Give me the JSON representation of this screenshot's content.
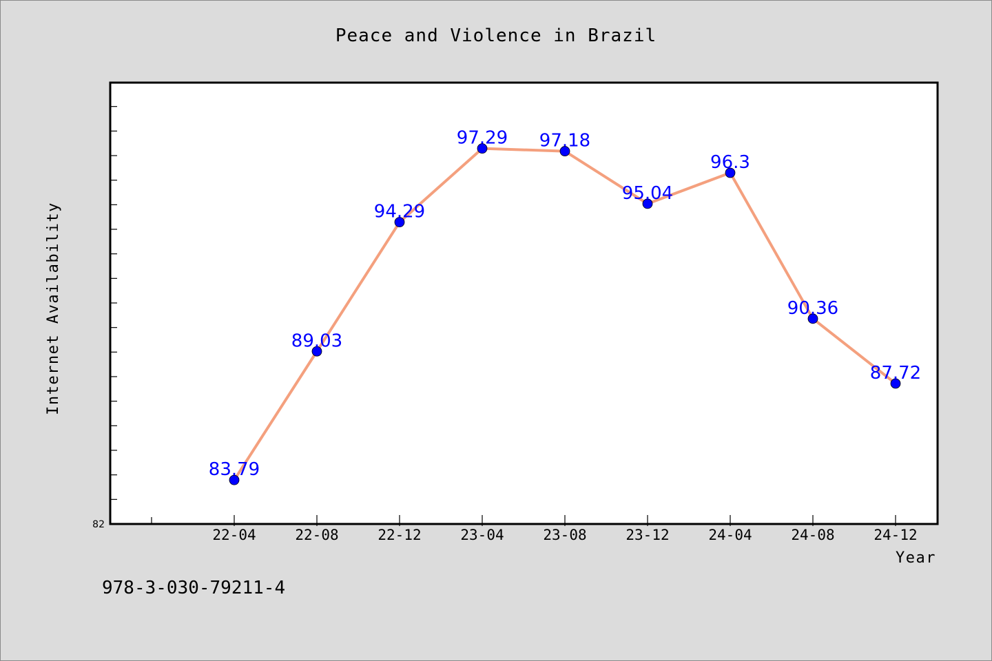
{
  "chart_data": {
    "type": "line",
    "title": "Peace and Violence in Brazil",
    "xlabel": "Year",
    "ylabel": "Internet Availability",
    "categories": [
      "22-04",
      "22-08",
      "22-12",
      "23-04",
      "23-08",
      "23-12",
      "24-04",
      "24-08",
      "24-12"
    ],
    "series": [
      {
        "values": [
          83.79,
          89.03,
          94.29,
          97.29,
          97.18,
          95.04,
          96.3,
          90.36,
          87.72
        ],
        "line_color": "#f4a07e",
        "marker_color": "#0000ff"
      }
    ],
    "data_labels": [
      "83.79",
      "89.03",
      "94.29",
      "97.29",
      "97.18",
      "95.04",
      "96.3",
      "90.36",
      "87.72"
    ],
    "ylim": [
      82,
      100
    ],
    "y_tick_label": "82",
    "grid": false,
    "plot_background": "#ffffff",
    "figure_background": "#dcdcdc",
    "label_color": "#0000ff"
  },
  "caption": "978-3-030-79211-4"
}
